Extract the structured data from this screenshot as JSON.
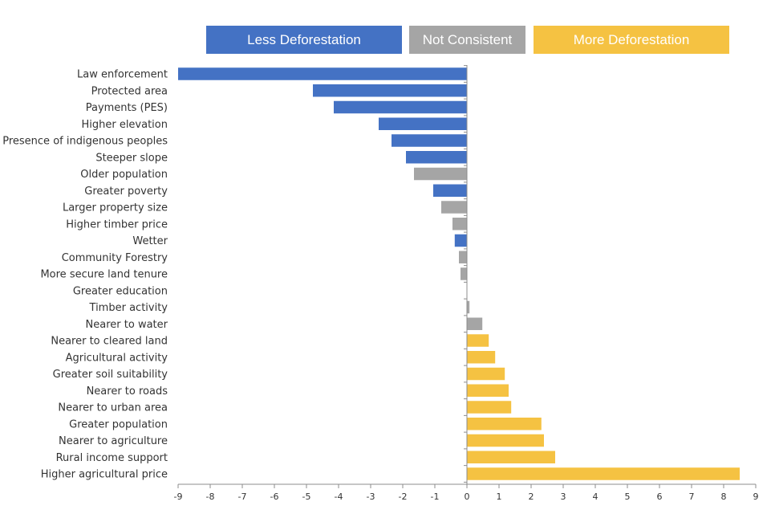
{
  "chart_data": {
    "type": "bar",
    "orientation": "horizontal",
    "title": "",
    "xlabel": "",
    "ylabel": "",
    "xlim": [
      -9,
      9
    ],
    "xticks": [
      -9,
      -8,
      -7,
      -6,
      -5,
      -4,
      -3,
      -2,
      -1,
      0,
      1,
      2,
      3,
      4,
      5,
      6,
      7,
      8,
      9
    ],
    "legend": [
      {
        "key": "less",
        "label": "Less Deforestation",
        "color": "#4472C4"
      },
      {
        "key": "not",
        "label": "Not Consistent",
        "color": "#A5A5A5"
      },
      {
        "key": "more",
        "label": "More Deforestation",
        "color": "#F5C242"
      }
    ],
    "legend_position": "top",
    "categories": [
      "Law enforcement",
      "Protected area",
      "Payments (PES)",
      "Higher elevation",
      "Presence of indigenous peoples",
      "Steeper slope",
      "Older population",
      "Greater poverty",
      "Larger property size",
      "Higher timber price",
      "Wetter",
      "Community Forestry",
      "More secure land tenure",
      "Greater education",
      "Timber activity",
      "Nearer to water",
      "Nearer to cleared land",
      "Agricultural activity",
      "Greater soil suitability",
      "Nearer to roads",
      "Nearer to urban area",
      "Greater population",
      "Nearer to agriculture",
      "Rural income support",
      "Higher agricultural price"
    ],
    "values": [
      -9.0,
      -4.8,
      -4.15,
      -2.75,
      -2.35,
      -1.9,
      -1.65,
      -1.05,
      -0.8,
      -0.45,
      -0.38,
      -0.25,
      -0.2,
      0.0,
      0.08,
      0.48,
      0.68,
      0.88,
      1.18,
      1.3,
      1.38,
      2.32,
      2.4,
      2.75,
      8.5
    ],
    "groups": [
      "less",
      "less",
      "less",
      "less",
      "less",
      "less",
      "not",
      "less",
      "not",
      "not",
      "less",
      "not",
      "not",
      "not",
      "not",
      "not",
      "more",
      "more",
      "more",
      "more",
      "more",
      "more",
      "more",
      "more",
      "more"
    ]
  }
}
